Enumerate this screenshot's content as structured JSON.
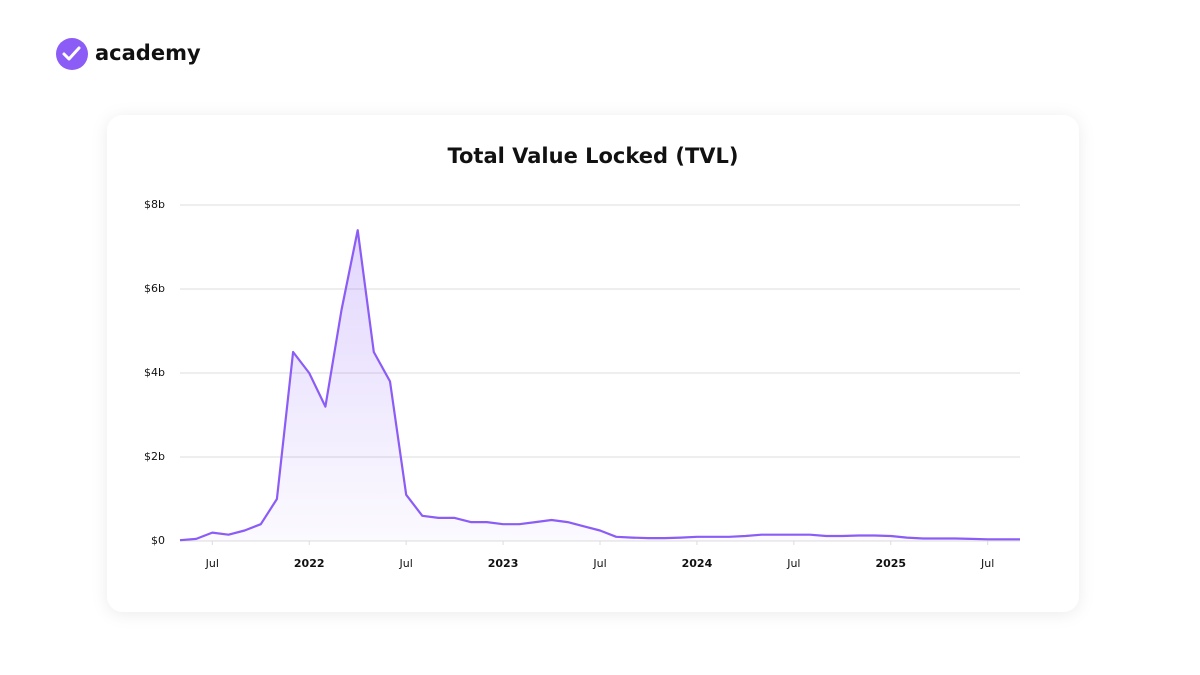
{
  "brand": "academy",
  "chart_data": {
    "type": "area",
    "title": "Total Value Locked (TVL)",
    "x": [
      "2021-05",
      "2021-06",
      "2021-07",
      "2021-08",
      "2021-09",
      "2021-10",
      "2021-11",
      "2021-12",
      "2022-01",
      "2022-02",
      "2022-03",
      "2022-04",
      "2022-05",
      "2022-06",
      "2022-07",
      "2022-08",
      "2022-09",
      "2022-10",
      "2022-11",
      "2022-12",
      "2023-01",
      "2023-02",
      "2023-03",
      "2023-04",
      "2023-05",
      "2023-06",
      "2023-07",
      "2023-08",
      "2023-09",
      "2023-10",
      "2023-11",
      "2023-12",
      "2024-01",
      "2024-02",
      "2024-03",
      "2024-04",
      "2024-05",
      "2024-06",
      "2024-07",
      "2024-08",
      "2024-09",
      "2024-10",
      "2024-11",
      "2024-12",
      "2025-01",
      "2025-02",
      "2025-03",
      "2025-04",
      "2025-05",
      "2025-06",
      "2025-07",
      "2025-08",
      "2025-09"
    ],
    "series": [
      {
        "color": "#8b5cf6",
        "values": [
          0.02,
          0.05,
          0.2,
          0.15,
          0.25,
          0.4,
          1.0,
          4.5,
          4.0,
          3.2,
          5.5,
          7.4,
          4.5,
          3.8,
          1.1,
          0.6,
          0.55,
          0.55,
          0.45,
          0.45,
          0.4,
          0.4,
          0.45,
          0.5,
          0.45,
          0.35,
          0.25,
          0.1,
          0.08,
          0.07,
          0.07,
          0.08,
          0.1,
          0.1,
          0.1,
          0.12,
          0.15,
          0.15,
          0.15,
          0.15,
          0.12,
          0.12,
          0.13,
          0.13,
          0.12,
          0.08,
          0.06,
          0.06,
          0.06,
          0.05,
          0.04,
          0.04,
          0.04
        ]
      }
    ],
    "xlim": [
      "2021-05",
      "2025-09"
    ],
    "xticks": [
      {
        "value": "2021-07",
        "label": "Jul"
      },
      {
        "value": "2022-01",
        "label": "2022"
      },
      {
        "value": "2022-07",
        "label": "Jul"
      },
      {
        "value": "2023-01",
        "label": "2023"
      },
      {
        "value": "2023-07",
        "label": "Jul"
      },
      {
        "value": "2024-01",
        "label": "2024"
      },
      {
        "value": "2024-07",
        "label": "Jul"
      },
      {
        "value": "2025-01",
        "label": "2025"
      },
      {
        "value": "2025-07",
        "label": "Jul"
      }
    ],
    "ylim": [
      0,
      8
    ],
    "yticks": [
      {
        "value": 0,
        "label": "$0"
      },
      {
        "value": 2,
        "label": "$2b"
      },
      {
        "value": 4,
        "label": "$4b"
      },
      {
        "value": 6,
        "label": "$6b"
      },
      {
        "value": 8,
        "label": "$8b"
      }
    ],
    "grid": true
  }
}
